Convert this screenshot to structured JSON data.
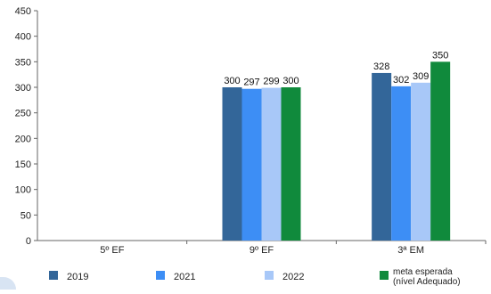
{
  "chart_data": {
    "type": "bar",
    "title": "",
    "xlabel": "",
    "ylabel": "",
    "categories": [
      "5º EF",
      "9º EF",
      "3ª EM"
    ],
    "ylim": [
      0,
      450
    ],
    "yticks": [
      0,
      50,
      100,
      150,
      200,
      250,
      300,
      350,
      400,
      450
    ],
    "grid": false,
    "legend_position": "bottom",
    "series": [
      {
        "name": "2019",
        "color": "#336699",
        "values": [
          null,
          300,
          328
        ]
      },
      {
        "name": "2021",
        "color": "#3d8ef5",
        "values": [
          null,
          297,
          302
        ]
      },
      {
        "name": "2022",
        "color": "#a8c8f8",
        "values": [
          null,
          299,
          309
        ]
      },
      {
        "name": "meta esperada (nível Adequado)",
        "color": "#108a3c",
        "values": [
          null,
          300,
          350
        ]
      }
    ]
  }
}
